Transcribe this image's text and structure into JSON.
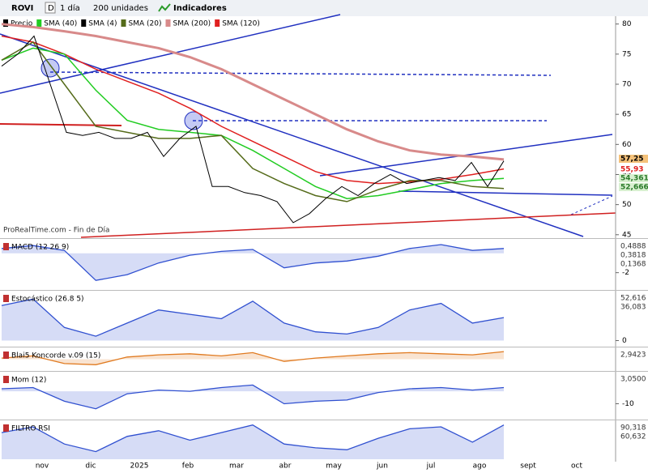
{
  "toolbar": {
    "symbol": "ROVI",
    "period_icon": "D",
    "period": "1 día",
    "units": "200 unidades",
    "indicators": "Indicadores"
  },
  "legend": [
    {
      "name": "Precio",
      "color": "#000000"
    },
    {
      "name": "SMA (40)",
      "color": "#22cc22"
    },
    {
      "name": "SMA (4)",
      "color": "#000000"
    },
    {
      "name": "SMA (20)",
      "color": "#556b1a"
    },
    {
      "name": "SMA (200)",
      "color": "#d88a8a"
    },
    {
      "name": "SMA (120)",
      "color": "#e02020"
    }
  ],
  "watermark": "ProRealTime.com - Fin de Día",
  "price_panel": {
    "ylim": [
      44.3,
      81.3
    ],
    "yticks": [
      80,
      75,
      70,
      65,
      60,
      55,
      50,
      45
    ],
    "price": {
      "color": "#000000",
      "values": [
        73,
        75,
        78,
        70,
        62,
        61.5,
        62,
        61,
        61,
        62,
        58,
        61,
        63,
        53,
        53,
        52,
        51.5,
        50.5,
        47,
        48.5,
        51,
        53,
        51.5,
        53.5,
        55,
        53.5,
        54,
        54.5,
        54,
        57,
        53,
        57.25
      ]
    },
    "smas": [
      {
        "color": "#d88a8a",
        "values": [
          80,
          79.5,
          78.8,
          78,
          77,
          76,
          74.5,
          72.5,
          70,
          67.5,
          65,
          62.5,
          60.5,
          59,
          58.3,
          58,
          57.5
        ]
      },
      {
        "color": "#e02020",
        "values": [
          78,
          77,
          75,
          72.5,
          70.5,
          68.5,
          66,
          63,
          60.5,
          58,
          55.5,
          54,
          53.5,
          53.8,
          54.2,
          55,
          55.93
        ]
      },
      {
        "color": "#22cc22",
        "values": [
          74,
          76,
          75,
          69,
          64,
          62.5,
          62,
          61.5,
          59,
          56,
          53,
          51,
          51.5,
          52.5,
          53.5,
          54,
          54.36
        ]
      },
      {
        "color": "#556b1a",
        "values": [
          74,
          77,
          70,
          63,
          62,
          61,
          61,
          61.5,
          56,
          53.5,
          51.5,
          50.5,
          52.5,
          54,
          54,
          53,
          52.67
        ]
      }
    ],
    "readouts": [
      {
        "text": "57,25",
        "color": "#000000",
        "bg": "#f5c27a"
      },
      {
        "text": "55,93",
        "color": "#e02020",
        "bg": "#ffffff"
      },
      {
        "text": "54,361",
        "color": "#2a7a2a",
        "bg": "#d8f0d0"
      },
      {
        "text": "52,666",
        "color": "#2a7a2a",
        "bg": "#d8f0d0"
      }
    ]
  },
  "indicators": [
    {
      "label": "MACD (12 26 9)",
      "ylim": [
        -3.7,
        1.4
      ],
      "ticks": [
        -2
      ],
      "color": "#3050d0",
      "values": [
        0.5,
        0.8,
        0.3,
        -2.8,
        -2.2,
        -1,
        -0.2,
        0.2,
        0.4,
        -1.5,
        -1,
        -0.8,
        -0.3,
        0.5,
        0.9,
        0.3,
        0.5
      ],
      "readouts": [
        "0,4888",
        "0,3818",
        "0,1368"
      ]
    },
    {
      "label": "Estocástico (26.8 5)",
      "ylim": [
        -12,
        112
      ],
      "ticks": [
        0
      ],
      "color": "#3050d0",
      "values": [
        80,
        95,
        30,
        10,
        40,
        70,
        60,
        50,
        90,
        40,
        20,
        15,
        30,
        70,
        85,
        40,
        52.6
      ],
      "readouts": [
        "52,616",
        "36,083"
      ]
    },
    {
      "label": "Blai5 Koncorde v.09 (15)",
      "ylim": [
        -1,
        1
      ],
      "ticks": [],
      "color": "#e07a20",
      "values": [
        0.1,
        0.3,
        -0.4,
        -0.5,
        0.2,
        0.4,
        0.5,
        0.3,
        0.6,
        -0.2,
        0.1,
        0.3,
        0.5,
        0.6,
        0.5,
        0.4,
        0.7
      ],
      "readouts": [
        "2,9423"
      ]
    },
    {
      "label": "Mom (12)",
      "ylim": [
        -22,
        15
      ],
      "ticks": [
        -10
      ],
      "color": "#3050d0",
      "values": [
        2,
        3,
        -8,
        -14,
        -2,
        1,
        0,
        3,
        5,
        -10,
        -8,
        -7,
        -1,
        2,
        3,
        1,
        3
      ],
      "readouts": [
        "3,0500"
      ]
    },
    {
      "label": "FILTRO RSI",
      "ylim": [
        0,
        100
      ],
      "ticks": [],
      "color": "#3050d0",
      "values": [
        70,
        85,
        40,
        20,
        60,
        75,
        50,
        70,
        90,
        40,
        30,
        25,
        55,
        80,
        85,
        45,
        90
      ],
      "readouts": [
        "90,318",
        "60,632"
      ]
    }
  ],
  "x_labels": [
    "nov",
    "dic",
    "2025",
    "feb",
    "mar",
    "abr",
    "may",
    "jun",
    "jul",
    "ago",
    "sept",
    "oct"
  ]
}
